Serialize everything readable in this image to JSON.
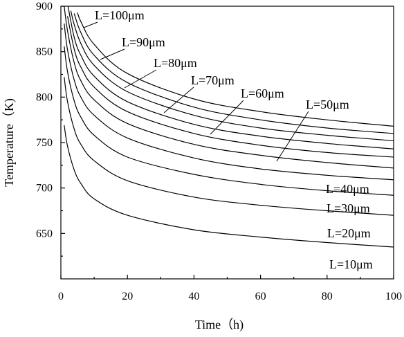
{
  "chart_data": {
    "type": "line",
    "xlabel": "Time（h)",
    "ylabel": "Temperature（K)",
    "xlim": [
      0,
      100
    ],
    "ylim": [
      600,
      900
    ],
    "xticks": [
      0,
      20,
      40,
      60,
      80,
      100
    ],
    "xtick_labels": [
      "0",
      "20",
      "40",
      "60",
      "80",
      "100"
    ],
    "yticks": [
      650,
      700,
      750,
      800,
      850,
      900
    ],
    "ytick_labels": [
      "650",
      "700",
      "750",
      "800",
      "850",
      "900"
    ],
    "grid": false,
    "series": [
      {
        "name": "L=10μm",
        "x": [
          1,
          2,
          4,
          6,
          10,
          20,
          40,
          60,
          80,
          100
        ],
        "y": [
          769,
          746,
          720,
          705,
          688,
          670,
          654,
          646,
          640,
          635
        ]
      },
      {
        "name": "L=20μm",
        "x": [
          1,
          2,
          4,
          6,
          10,
          20,
          40,
          60,
          80,
          100
        ],
        "y": [
          822,
          795,
          765,
          748,
          730,
          708,
          690,
          681,
          675,
          670
        ]
      },
      {
        "name": "L=30μm",
        "x": [
          1,
          2,
          4,
          6,
          10,
          20,
          40,
          60,
          80,
          100
        ],
        "y": [
          856,
          828,
          796,
          778,
          758,
          734,
          715,
          704,
          697,
          692
        ]
      },
      {
        "name": "L=40μm",
        "x": [
          1,
          2,
          4,
          6,
          10,
          20,
          40,
          60,
          80,
          100
        ],
        "y": [
          881,
          852,
          819,
          800,
          780,
          755,
          733,
          721,
          714,
          709
        ]
      },
      {
        "name": "L=50μm",
        "x": [
          1,
          2,
          4,
          6,
          10,
          20,
          40,
          60,
          80,
          100
        ],
        "y": [
          900,
          873,
          838,
          818,
          797,
          771,
          748,
          736,
          728,
          722
        ]
      },
      {
        "name": "L=60μm",
        "x": [
          2,
          4,
          6,
          10,
          20,
          40,
          60,
          80,
          100
        ],
        "y": [
          889,
          853,
          833,
          811,
          784,
          760,
          747,
          739,
          734
        ]
      },
      {
        "name": "L=70μm",
        "x": [
          2,
          4,
          6,
          10,
          20,
          40,
          60,
          80,
          100
        ],
        "y": [
          903,
          866,
          846,
          823,
          795,
          770,
          757,
          749,
          743
        ]
      },
      {
        "name": "L=80μm",
        "x": [
          3,
          4,
          6,
          10,
          20,
          40,
          60,
          80,
          100
        ],
        "y": [
          895,
          880,
          859,
          835,
          806,
          780,
          766,
          758,
          752
        ]
      },
      {
        "name": "L=90μm",
        "x": [
          4,
          6,
          10,
          20,
          40,
          60,
          80,
          100
        ],
        "y": [
          892,
          871,
          846,
          816,
          789,
          775,
          766,
          760
        ]
      },
      {
        "name": "L=100μm",
        "x": [
          5,
          6,
          10,
          20,
          40,
          60,
          80,
          100
        ],
        "y": [
          893,
          883,
          858,
          826,
          798,
          784,
          775,
          768
        ]
      }
    ]
  }
}
